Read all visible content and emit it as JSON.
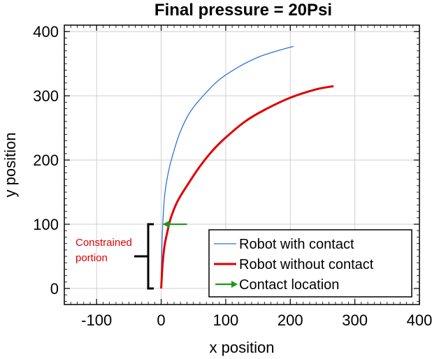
{
  "chart_data": {
    "type": "line",
    "title": "Final pressure = 20Psi",
    "xlabel": "x position",
    "ylabel": "y position",
    "xlim": [
      -150,
      400
    ],
    "ylim": [
      -25,
      410
    ],
    "xticks": [
      -100,
      0,
      100,
      200,
      300,
      400
    ],
    "yticks": [
      0,
      100,
      200,
      300,
      400
    ],
    "x_tick_labels": [
      "-100",
      "0",
      "100",
      "200",
      "300",
      "400"
    ],
    "y_tick_labels": [
      "0",
      "100",
      "200",
      "300",
      "400"
    ],
    "grid": true,
    "legend_placement": "bottom-right",
    "series": [
      {
        "name": "Robot with contact",
        "color": "#2f74d6",
        "x": [
          0,
          1,
          3,
          6,
          12,
          20,
          30,
          45,
          65,
          90,
          120,
          150,
          180,
          205
        ],
        "y": [
          0,
          60,
          110,
          150,
          185,
          215,
          245,
          275,
          300,
          325,
          345,
          360,
          370,
          377
        ]
      },
      {
        "name": "Robot without contact",
        "color": "#e00000",
        "x": [
          0,
          2,
          5,
          10,
          15,
          25,
          40,
          60,
          80,
          100,
          130,
          160,
          200,
          240,
          267
        ],
        "y": [
          0,
          35,
          65,
          90,
          110,
          135,
          160,
          190,
          215,
          235,
          260,
          278,
          297,
          310,
          315
        ]
      }
    ],
    "contact_location": {
      "name": "Contact location",
      "color": "#1a9a1a",
      "x_from": 40,
      "x_to": 2,
      "y": 100
    },
    "annotation": {
      "text_line1": "Constrained",
      "text_line2": "portion",
      "color": "#e00000",
      "y_from": 0,
      "y_to": 100
    }
  }
}
